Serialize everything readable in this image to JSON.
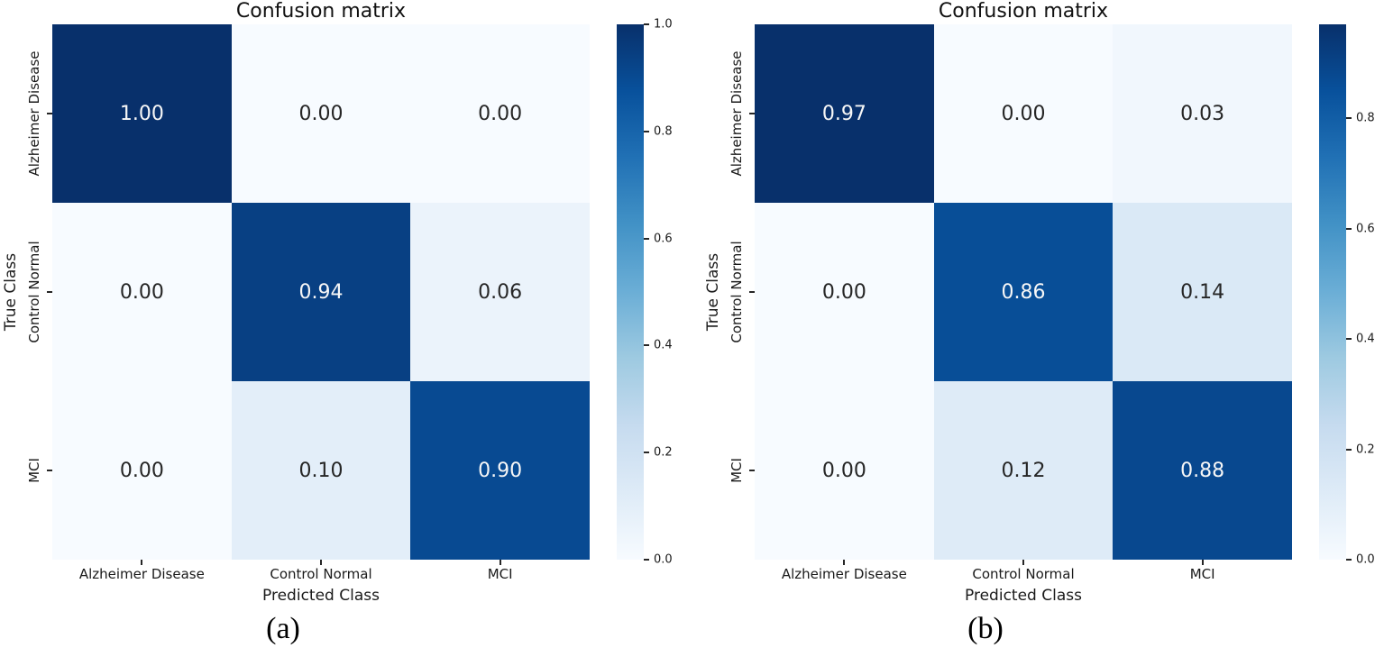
{
  "colors": {
    "background": "#ffffff",
    "text": "#1a1a1a",
    "annotation_on_dark": "#f7f7f7",
    "annotation_on_light": "#262626",
    "tick_mark": "#262626",
    "colormap_name": "Blues",
    "blues_anchors": [
      "#f7fbff",
      "#deebf7",
      "#c6dbef",
      "#9ecae1",
      "#6baed6",
      "#4292c6",
      "#2171b5",
      "#08519c",
      "#08306b"
    ]
  },
  "chart_data": [
    {
      "type": "heatmap",
      "panel_label": "(a)",
      "title": "Confusion matrix",
      "xlabel": "Predicted Class",
      "ylabel": "True Class",
      "x_categories": [
        "Alzheimer Disease",
        "Control Normal",
        "MCI"
      ],
      "y_categories": [
        "Alzheimer Disease",
        "Control Normal",
        "MCI"
      ],
      "values": [
        [
          1.0,
          0.0,
          0.0
        ],
        [
          0.0,
          0.94,
          0.06
        ],
        [
          0.0,
          0.1,
          0.9
        ]
      ],
      "vmin": 0.0,
      "vmax": 1.0,
      "colorbar_ticks": [
        1.0,
        0.8,
        0.6,
        0.4,
        0.2,
        0.0
      ],
      "colorbar_position": "right",
      "grid": false
    },
    {
      "type": "heatmap",
      "panel_label": "(b)",
      "title": "Confusion matrix",
      "xlabel": "Predicted Class",
      "ylabel": "True Class",
      "x_categories": [
        "Alzheimer Disease",
        "Control Normal",
        "MCI"
      ],
      "y_categories": [
        "Alzheimer Disease",
        "Control Normal",
        "MCI"
      ],
      "values": [
        [
          0.97,
          0.0,
          0.03
        ],
        [
          0.0,
          0.86,
          0.14
        ],
        [
          0.0,
          0.12,
          0.88
        ]
      ],
      "vmin": 0.0,
      "vmax": 0.97,
      "colorbar_ticks": [
        0.8,
        0.6,
        0.4,
        0.2,
        0.0
      ],
      "colorbar_position": "right",
      "grid": false
    }
  ]
}
